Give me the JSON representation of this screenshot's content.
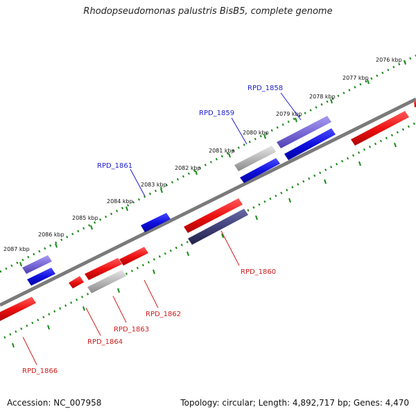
{
  "title": "Rhodopseudomonas palustris BisB5, complete genome",
  "footer": {
    "accession": "Accession: NC_007958",
    "stats": "Topology: circular; Length: 4,892,717 bp; Genes: 4,470"
  },
  "scale_labels": [
    "2076 kbp",
    "2077 kbp",
    "2078 kbp",
    "2079 kbp",
    "2080 kbp",
    "2081 kbp",
    "2082 kbp",
    "2083 kbp",
    "2084 kbp",
    "2085 kbp",
    "2086 kbp",
    "2087 kbp"
  ],
  "gene_labels_top": [
    "RPD_1858",
    "RPD_1859",
    "RPD_1861"
  ],
  "gene_labels_bottom": [
    "RPD_1860",
    "RPD_1862",
    "RPD_1863",
    "RPD_1864",
    "RPD_1866"
  ],
  "colors": {
    "forward": "#1010e0",
    "forward_light": "#7a6ad8",
    "reverse": "#ee1212",
    "reverse_dark": "#40407a",
    "grey_gene": "#b4b4b4",
    "backbone": "#7a7a7a",
    "scale_dots": "#1a8a1a"
  }
}
